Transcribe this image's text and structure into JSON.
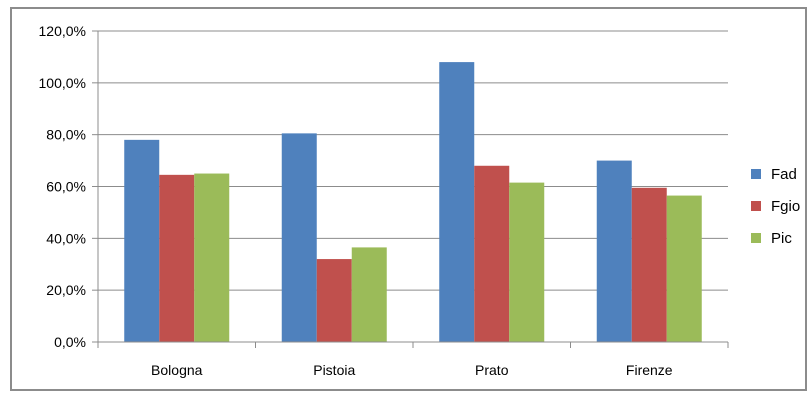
{
  "chart_data": {
    "type": "bar",
    "categories": [
      "Bologna",
      "Pistoia",
      "Prato",
      "Firenze"
    ],
    "series": [
      {
        "name": "Fad",
        "color": "#4f81bd",
        "values": [
          78.0,
          80.5,
          108.0,
          70.0
        ]
      },
      {
        "name": "Fgio",
        "color": "#c0504d",
        "values": [
          64.5,
          32.0,
          68.0,
          59.5
        ]
      },
      {
        "name": "Pic",
        "color": "#9bbb59",
        "values": [
          65.0,
          36.5,
          61.5,
          56.5
        ]
      }
    ],
    "yticks": [
      "0,0%",
      "20,0%",
      "40,0%",
      "60,0%",
      "80,0%",
      "100,0%",
      "120,0%"
    ],
    "ylim": [
      0,
      120
    ],
    "value_unit": "percent",
    "grid": true,
    "legend_position": "right"
  }
}
